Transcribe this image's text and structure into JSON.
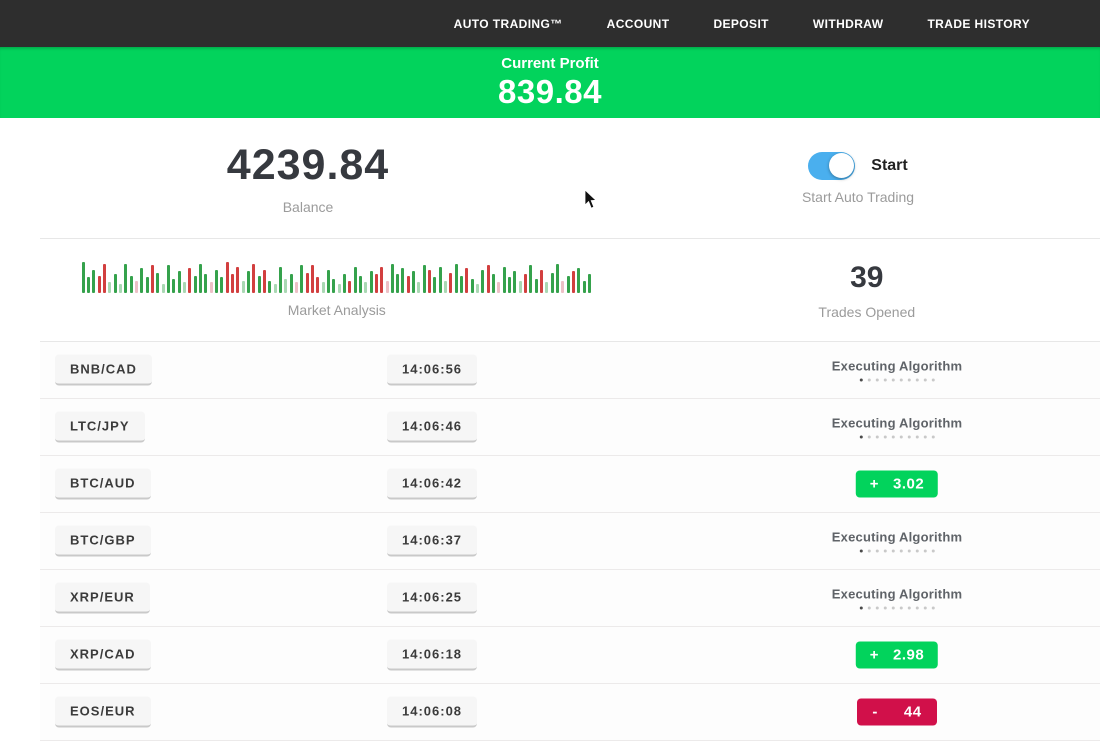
{
  "nav": {
    "items": [
      {
        "label": "AUTO TRADING™"
      },
      {
        "label": "ACCOUNT"
      },
      {
        "label": "DEPOSIT"
      },
      {
        "label": "WITHDRAW"
      },
      {
        "label": "TRADE HISTORY"
      }
    ]
  },
  "banner": {
    "label": "Current Profit",
    "value": "839.84"
  },
  "stats": {
    "balance": {
      "value": "4239.84",
      "label": "Balance"
    },
    "auto_trading": {
      "toggle_label": "Start",
      "label": "Start Auto Trading",
      "enabled": true
    },
    "market": {
      "label": "Market Analysis"
    },
    "trades_opened": {
      "value": "39",
      "label": "Trades Opened"
    }
  },
  "market_chart": {
    "type": "bar",
    "bar_colors": {
      "g": "#35a24c",
      "r": "#d23f3f",
      "lg": "#a9d8b3",
      "lr": "#edc0c6"
    },
    "bars": [
      "g:1.0",
      "g:0.5",
      "g:0.75",
      "r:0.55",
      "r:0.95",
      "lg:0.35",
      "g:0.6",
      "lg:0.3",
      "g:0.95",
      "g:0.55",
      "lr:0.4",
      "g:0.8",
      "g:0.5",
      "r:0.9",
      "g:0.65",
      "lg:0.3",
      "g:0.9",
      "g:0.45",
      "g:0.7",
      "lg:0.35",
      "r:0.8",
      "g:0.55",
      "g:0.95",
      "g:0.6",
      "lr:0.35",
      "g:0.75",
      "g:0.5",
      "r:1.0",
      "r:0.6",
      "r:0.85",
      "lg:0.4",
      "g:0.7",
      "r:0.95",
      "g:0.55",
      "r:0.75",
      "g:0.4",
      "lg:0.3",
      "g:0.85",
      "lg:0.45",
      "g:0.6",
      "lr:0.35",
      "g:0.9",
      "r:0.65",
      "r:0.9",
      "r:0.5",
      "lg:0.35",
      "g:0.75",
      "g:0.45",
      "lg:0.3",
      "g:0.6",
      "r:0.4",
      "g:0.85",
      "g:0.55",
      "lg:0.35",
      "g:0.7",
      "r:0.6",
      "r:0.85",
      "lr:0.4",
      "g:0.95",
      "g:0.6",
      "g:0.8",
      "r:0.55",
      "g:0.7",
      "lg:0.35",
      "g:0.9",
      "r:0.75",
      "g:0.5",
      "g:0.85",
      "lg:0.4",
      "r:0.65",
      "g:0.95",
      "g:0.55",
      "r:0.8",
      "g:0.45",
      "lg:0.3",
      "g:0.75",
      "r:0.9",
      "g:0.6",
      "lr:0.35",
      "g:0.85",
      "g:0.5",
      "g:0.7",
      "lg:0.4",
      "r:0.6",
      "g:0.9",
      "g:0.45",
      "r:0.75",
      "lg:0.35",
      "g:0.65",
      "g:0.95",
      "lr:0.4",
      "g:0.55",
      "r:0.7",
      "g:0.8",
      "g:0.4",
      "g:0.6"
    ]
  },
  "trades": [
    {
      "pair": "BNB/CAD",
      "time": "14:06:56",
      "status": "executing",
      "status_label": "Executing Algorithm"
    },
    {
      "pair": "LTC/JPY",
      "time": "14:06:46",
      "status": "executing",
      "status_label": "Executing Algorithm"
    },
    {
      "pair": "BTC/AUD",
      "time": "14:06:42",
      "status": "profit",
      "sign": "+",
      "value": "3.02"
    },
    {
      "pair": "BTC/GBP",
      "time": "14:06:37",
      "status": "executing",
      "status_label": "Executing Algorithm"
    },
    {
      "pair": "XRP/EUR",
      "time": "14:06:25",
      "status": "executing",
      "status_label": "Executing Algorithm"
    },
    {
      "pair": "XRP/CAD",
      "time": "14:06:18",
      "status": "profit",
      "sign": "+",
      "value": "2.98"
    },
    {
      "pair": "EOS/EUR",
      "time": "14:06:08",
      "status": "loss",
      "sign": "-",
      "value": "44"
    }
  ],
  "executing_indicator": {
    "dots_total": 10,
    "dots_active": 1
  },
  "colors": {
    "nav_background": "#2e2e2e",
    "accent_green": "#02d35c",
    "badge_green": "#1ec55c",
    "badge_red": "#d1104a",
    "toggle_blue": "#4aafee"
  }
}
